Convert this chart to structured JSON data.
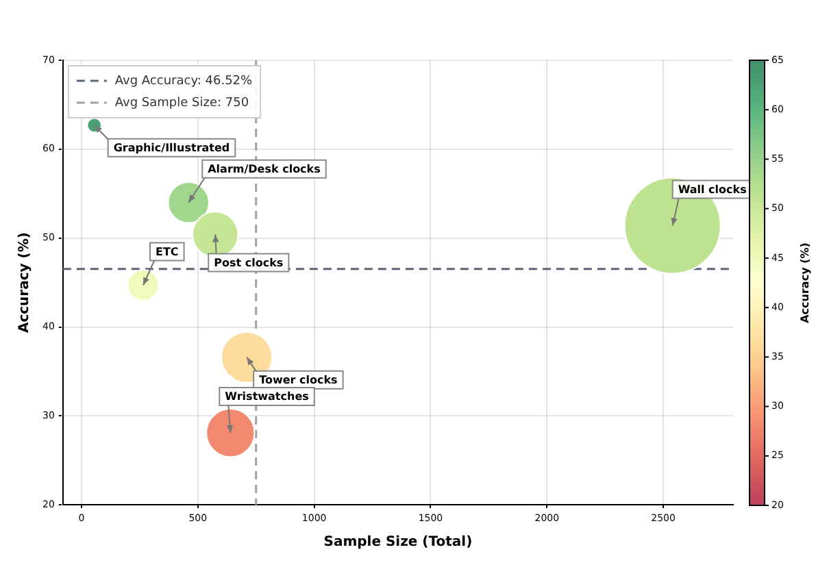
{
  "chart_data": {
    "type": "bubble",
    "xlabel": "Sample Size (Total)",
    "ylabel": "Accuracy (%)",
    "clabel": "Accuracy (%)",
    "x": [
      55,
      460,
      575,
      265,
      2540,
      710,
      640
    ],
    "values": [
      62.7,
      54.0,
      50.4,
      44.7,
      51.4,
      36.6,
      28.1
    ],
    "sizes": [
      0.022,
      0.181,
      0.226,
      0.104,
      1,
      0.28,
      0.252
    ],
    "cvalues": [
      62.7,
      54.0,
      50.4,
      44.7,
      51.4,
      36.6,
      28.1
    ],
    "xlim": [
      -80,
      2800
    ],
    "xticks": [
      0,
      500,
      1000,
      1500,
      2000,
      2500
    ],
    "ylim": [
      20,
      70
    ],
    "yticks": [
      20,
      30,
      40,
      50,
      60,
      70
    ],
    "clim": [
      20,
      65
    ],
    "cticks": [
      20,
      25,
      30,
      35,
      40,
      45,
      50,
      55,
      60,
      65
    ],
    "grid": true,
    "legend": "top left",
    "marker": "circle",
    "ref_lines": [
      {
        "axis": "y",
        "value": 46.52,
        "label": "Avg Accuracy: 46.52%",
        "color": "#5a6378",
        "line_style": "dashed"
      },
      {
        "axis": "x",
        "value": 750,
        "label": "Avg Sample Size: 750",
        "color": "#a0a0a0",
        "line_style": "dashed"
      }
    ],
    "annotations": [
      {
        "text": "Graphic/Illustrated",
        "x": 55,
        "y": 62.7
      },
      {
        "text": "Alarm/Desk clocks",
        "x": 460,
        "y": 54.0
      },
      {
        "text": "Post clocks",
        "x": 575,
        "y": 50.4
      },
      {
        "text": "ETC",
        "x": 265,
        "y": 44.7
      },
      {
        "text": "Wall clocks",
        "x": 2540,
        "y": 51.4
      },
      {
        "text": "Tower clocks",
        "x": 710,
        "y": 36.6
      },
      {
        "text": "Wristwatches",
        "x": 640,
        "y": 28.1
      }
    ]
  }
}
